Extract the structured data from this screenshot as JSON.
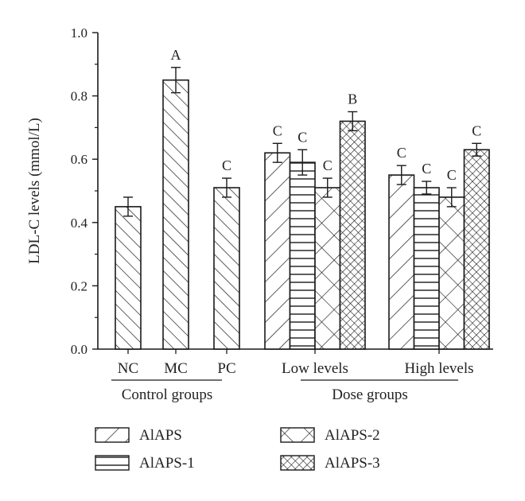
{
  "chart_data": {
    "type": "bar",
    "ylabel": "LDL-C levels (mmol/L)",
    "ylim": [
      0.0,
      1.0
    ],
    "yticks": [
      "0.0",
      "0.2",
      "0.4",
      "0.6",
      "0.8",
      "1.0"
    ],
    "grid": false,
    "groups": [
      {
        "name": "Control groups",
        "bars": [
          {
            "category": "NC",
            "value": 0.45,
            "error": 0.03,
            "sig": "",
            "pattern": "diag-right"
          },
          {
            "category": "MC",
            "value": 0.85,
            "error": 0.04,
            "sig": "A",
            "pattern": "diag-right"
          },
          {
            "category": "PC",
            "value": 0.51,
            "error": 0.03,
            "sig": "C",
            "pattern": "diag-right"
          }
        ]
      },
      {
        "name": "Dose groups",
        "subgroups": [
          {
            "category": "Low levels",
            "bars": [
              {
                "series": "AlAPS",
                "value": 0.62,
                "error": 0.03,
                "sig": "C"
              },
              {
                "series": "AlAPS-1",
                "value": 0.59,
                "error": 0.04,
                "sig": "C"
              },
              {
                "series": "AlAPS-2",
                "value": 0.51,
                "error": 0.03,
                "sig": "C"
              },
              {
                "series": "AlAPS-3",
                "value": 0.72,
                "error": 0.03,
                "sig": "B"
              }
            ]
          },
          {
            "category": "High levels",
            "bars": [
              {
                "series": "AlAPS",
                "value": 0.55,
                "error": 0.03,
                "sig": "C"
              },
              {
                "series": "AlAPS-1",
                "value": 0.51,
                "error": 0.02,
                "sig": "C"
              },
              {
                "series": "AlAPS-2",
                "value": 0.48,
                "error": 0.03,
                "sig": "C"
              },
              {
                "series": "AlAPS-3",
                "value": 0.63,
                "error": 0.02,
                "sig": "C"
              }
            ]
          }
        ]
      }
    ],
    "legend": {
      "placement": "bottom",
      "items": [
        {
          "name": "AlAPS",
          "pattern": "diag-left"
        },
        {
          "name": "AlAPS-2",
          "pattern": "cross"
        },
        {
          "name": "AlAPS-1",
          "pattern": "horizontal"
        },
        {
          "name": "AlAPS-3",
          "pattern": "dense-cross"
        }
      ]
    }
  }
}
